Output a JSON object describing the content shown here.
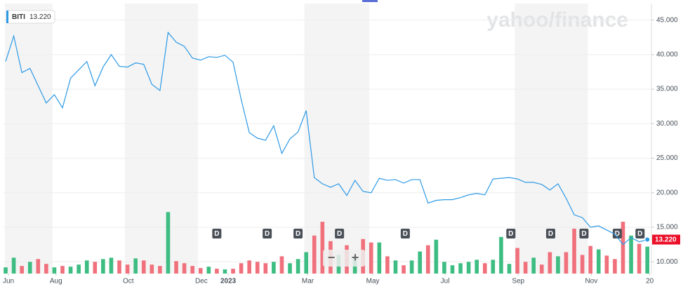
{
  "chart_data": {
    "type": "line",
    "symbol": "BITI",
    "last_price": {
      "value": 13.22,
      "label": "13.220"
    },
    "watermark": "yahoo/finance",
    "zoom_out": "−",
    "zoom_in": "+",
    "series": [
      {
        "name": "BITI",
        "color": "#2e9ae6",
        "x": [
          0,
          1,
          2,
          3,
          4,
          5,
          6,
          7,
          8,
          9,
          10,
          11,
          12,
          13,
          14,
          15,
          16,
          17,
          18,
          19,
          20,
          21,
          22,
          23,
          24,
          25,
          26,
          27,
          28,
          29,
          30,
          31,
          32,
          33,
          34,
          35,
          36,
          37,
          38,
          39,
          40,
          41,
          42,
          43,
          44,
          45,
          46,
          47,
          48,
          49,
          50,
          51,
          52,
          53,
          54,
          55,
          56,
          57,
          58,
          59,
          60,
          61,
          62,
          63,
          64,
          65,
          66,
          67,
          68,
          69,
          70,
          71,
          72,
          73,
          74,
          75,
          76,
          77,
          78,
          79
        ],
        "values": [
          39.0,
          42.7,
          37.4,
          38.0,
          35.5,
          33.0,
          34.2,
          32.3,
          36.6,
          37.8,
          39.0,
          35.5,
          38.2,
          40.0,
          38.3,
          38.2,
          38.8,
          38.6,
          35.7,
          34.8,
          43.2,
          41.8,
          41.2,
          39.5,
          39.2,
          39.7,
          39.6,
          39.9,
          38.9,
          33.5,
          28.7,
          27.9,
          27.6,
          29.7,
          25.7,
          27.8,
          28.8,
          31.9,
          22.2,
          21.3,
          20.8,
          21.3,
          19.6,
          21.8,
          20.2,
          20.0,
          22.1,
          21.8,
          21.9,
          21.4,
          21.9,
          21.9,
          18.5,
          18.9,
          19.0,
          19.0,
          19.3,
          19.7,
          19.9,
          19.7,
          22.0,
          22.1,
          22.2,
          22.0,
          21.5,
          21.5,
          21.2,
          20.4,
          21.3,
          19.2,
          16.8,
          16.4,
          15.0,
          15.2,
          14.6,
          14.0,
          12.5,
          13.5,
          12.9,
          13.22
        ]
      }
    ],
    "volume": {
      "up_color": "#3dbd82",
      "down_color": "#f0707c",
      "values": [
        9.2,
        10.6,
        9.4,
        10.0,
        10.4,
        9.7,
        9.2,
        9.4,
        9.3,
        9.6,
        10.2,
        10.0,
        10.4,
        10.6,
        10.2,
        9.6,
        10.5,
        10.2,
        9.6,
        9.4,
        17.2,
        10.1,
        9.8,
        9.4,
        9.1,
        9.3,
        9.0,
        8.9,
        9.0,
        9.8,
        10.2,
        10.0,
        9.8,
        10.0,
        10.8,
        9.8,
        10.4,
        11.4,
        13.8,
        15.8,
        13.0,
        11.0,
        12.4,
        10.8,
        13.3,
        12.8,
        12.8,
        10.8,
        10.2,
        9.5,
        10.2,
        11.5,
        12.4,
        13.2,
        10.0,
        9.5,
        9.8,
        10.0,
        10.3,
        9.8,
        10.3,
        13.6,
        9.7,
        12.0,
        10.0,
        10.6,
        9.6,
        11.4,
        10.8,
        11.4,
        14.8,
        11.0,
        12.3,
        11.8,
        10.9,
        10.4,
        15.8,
        13.8,
        12.6,
        12.2
      ]
    },
    "dividends": {
      "label": "D",
      "x": [
        26.0,
        32.2,
        36.0,
        41.1,
        49.2,
        62.2,
        67.1,
        71.2,
        75.3,
        78.1
      ]
    },
    "xlim": [
      -0.26,
      79.5
    ],
    "xticks": [
      {
        "value": 0.35,
        "label": "Jun"
      },
      {
        "value": 6.2,
        "label": "Aug"
      },
      {
        "value": 15.1,
        "label": "Oct"
      },
      {
        "value": 24.1,
        "label": "Dec"
      },
      {
        "value": 27.4,
        "label": "2023"
      },
      {
        "value": 37.2,
        "label": "Mar"
      },
      {
        "value": 45.2,
        "label": "May"
      },
      {
        "value": 54.1,
        "label": "Jul"
      },
      {
        "value": 63.1,
        "label": "Sep"
      },
      {
        "value": 72.1,
        "label": "Nov"
      },
      {
        "value": 79.3,
        "label": "20"
      }
    ],
    "ylim": [
      8.3,
      47.4
    ],
    "yticks": [
      {
        "value": 10,
        "label": "10.000"
      },
      {
        "value": 15,
        "label": "15.000"
      },
      {
        "value": 20,
        "label": "20.000"
      },
      {
        "value": 25,
        "label": "25.000"
      },
      {
        "value": 30,
        "label": "30.000"
      },
      {
        "value": 35,
        "label": "35.000"
      },
      {
        "value": 40,
        "label": "40.000"
      },
      {
        "value": 45,
        "label": "45.000"
      }
    ]
  }
}
